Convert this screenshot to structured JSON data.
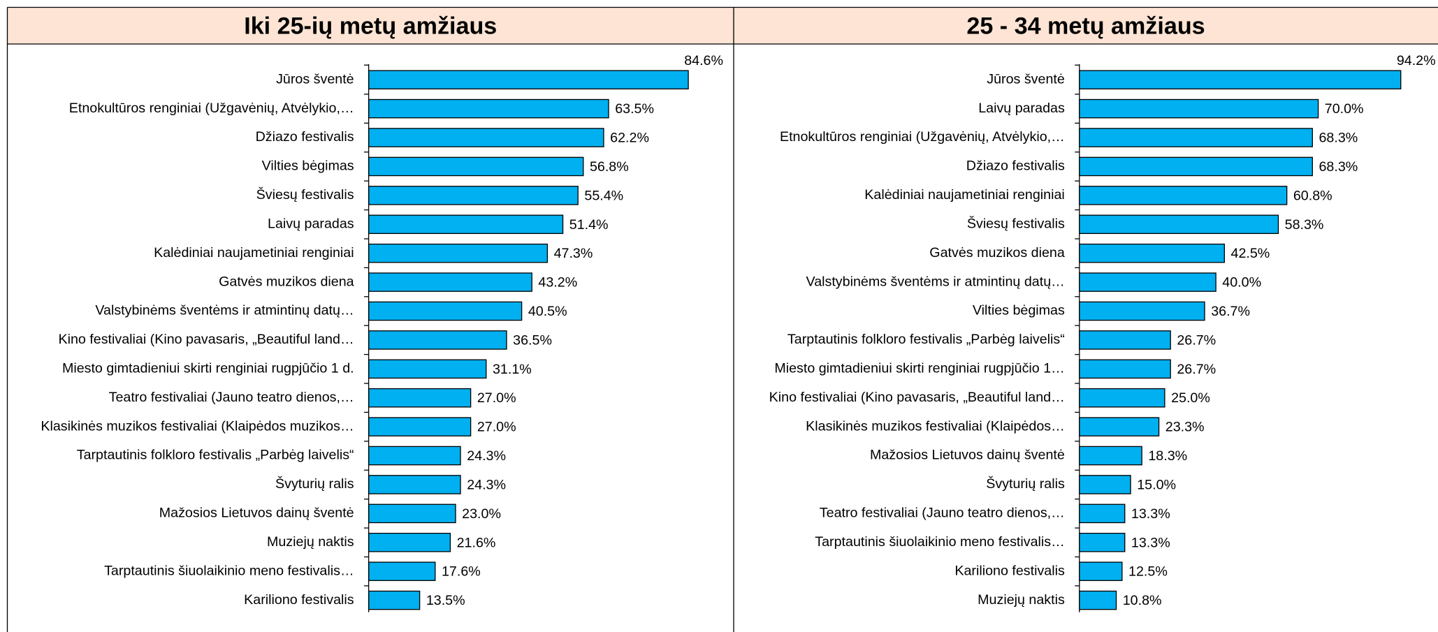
{
  "chart_data": [
    {
      "type": "bar",
      "orientation": "horizontal",
      "title": "Iki 25-ių metų amžiaus",
      "color": "#00b0f0",
      "xlim": [
        0,
        100
      ],
      "categories": [
        "Jūros šventė",
        "Etnokultūros renginiai (Užgavėnių, Atvėlykio,…",
        "Džiazo festivalis",
        "Vilties bėgimas",
        "Šviesų festivalis",
        "Laivų paradas",
        "Kalėdiniai naujametiniai renginiai",
        "Gatvės muzikos diena",
        "Valstybinėms šventėms ir atmintinų datų…",
        "Kino festivaliai (Kino pavasaris, „Beautiful land…",
        "Miesto gimtadieniui skirti renginiai rugpjūčio 1 d.",
        "Teatro festivaliai (Jauno teatro dienos,…",
        "Klasikinės muzikos festivaliai (Klaipėdos muzikos…",
        "Tarptautinis folkloro festivalis „Parbėg laivelis“",
        "Švyturių ralis",
        "Mažosios Lietuvos dainų šventė",
        "Muziejų naktis",
        "Tarptautinis šiuolaikinio meno festivalis…",
        "Kariliono festivalis"
      ],
      "values": [
        84.6,
        63.5,
        62.2,
        56.8,
        55.4,
        51.4,
        47.3,
        43.2,
        40.5,
        36.5,
        31.1,
        27,
        27,
        24.3,
        24.3,
        23,
        21.6,
        17.6,
        13.5
      ],
      "value_labels": [
        "84.6%",
        "63.5%",
        "62.2%",
        "56.8%",
        "55.4%",
        "51.4%",
        "47.3%",
        "43.2%",
        "40.5%",
        "36.5%",
        "31.1%",
        "27.0%",
        "27.0%",
        "24.3%",
        "24.3%",
        "23.0%",
        "21.6%",
        "17.6%",
        "13.5%"
      ]
    },
    {
      "type": "bar",
      "orientation": "horizontal",
      "title": "25 - 34 metų amžiaus",
      "color": "#00b0f0",
      "xlim": [
        0,
        100
      ],
      "categories": [
        "Jūros šventė",
        "Laivų paradas",
        "Etnokultūros renginiai (Užgavėnių, Atvėlykio,…",
        "Džiazo festivalis",
        "Kalėdiniai naujametiniai renginiai",
        "Šviesų festivalis",
        "Gatvės muzikos diena",
        "Valstybinėms šventėms ir atmintinų datų…",
        "Vilties bėgimas",
        "Tarptautinis folkloro festivalis „Parbėg laivelis“",
        "Miesto gimtadieniui skirti renginiai rugpjūčio 1…",
        "Kino festivaliai (Kino pavasaris, „Beautiful land…",
        "Klasikinės muzikos festivaliai (Klaipėdos…",
        "Mažosios Lietuvos dainų šventė",
        "Švyturių ralis",
        "Teatro festivaliai (Jauno teatro dienos,…",
        "Tarptautinis šiuolaikinio meno festivalis…",
        "Kariliono festivalis",
        "Muziejų naktis"
      ],
      "values": [
        94.2,
        70,
        68.3,
        68.3,
        60.8,
        58.3,
        42.5,
        40,
        36.7,
        26.7,
        26.7,
        25,
        23.3,
        18.3,
        15,
        13.3,
        13.3,
        12.5,
        10.8
      ],
      "value_labels": [
        "94.2%",
        "70.0%",
        "68.3%",
        "68.3%",
        "60.8%",
        "58.3%",
        "42.5%",
        "40.0%",
        "36.7%",
        "26.7%",
        "26.7%",
        "25.0%",
        "23.3%",
        "18.3%",
        "15.0%",
        "13.3%",
        "13.3%",
        "12.5%",
        "10.8%"
      ]
    }
  ]
}
